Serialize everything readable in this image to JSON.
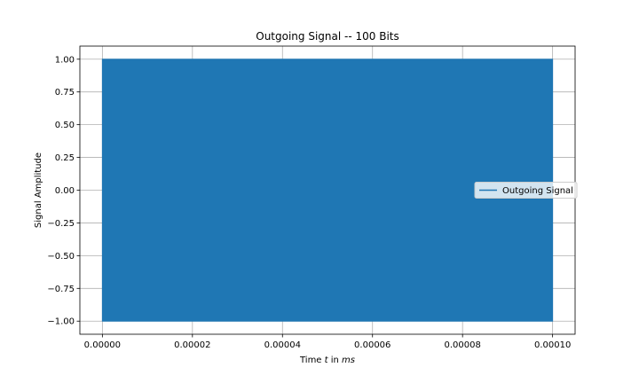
{
  "chart_data": {
    "type": "line",
    "title": "Outgoing Signal -- 100 Bits",
    "xlabel_parts": [
      "Time ",
      "t",
      " in ",
      "ms"
    ],
    "ylabel": "Signal Amplitude",
    "xlim": [
      -5e-06,
      0.000105
    ],
    "ylim": [
      -1.1,
      1.1
    ],
    "x_ticks": [
      0.0,
      2e-05,
      4e-05,
      6e-05,
      8e-05,
      0.0001
    ],
    "x_tick_labels": [
      "0.00000",
      "0.00002",
      "0.00004",
      "0.00006",
      "0.00008",
      "0.00010"
    ],
    "y_ticks": [
      1.0,
      0.75,
      0.5,
      0.25,
      0.0,
      -0.25,
      -0.5,
      -0.75,
      -1.0
    ],
    "y_tick_labels": [
      "1.00",
      "0.75",
      "0.50",
      "0.25",
      "0.00",
      "−0.25",
      "−0.50",
      "−0.75",
      "−1.00"
    ],
    "grid": true,
    "legend": {
      "placement": "center-right",
      "entries": [
        "Outgoing Signal"
      ]
    },
    "series": [
      {
        "name": "Outgoing Signal",
        "color": "#1f77b4",
        "x_range": [
          0.0,
          0.0001
        ],
        "y_range": [
          -1.0,
          1.0
        ],
        "note_visible": "dense oscillation filling the band between -1 and 1"
      }
    ]
  }
}
